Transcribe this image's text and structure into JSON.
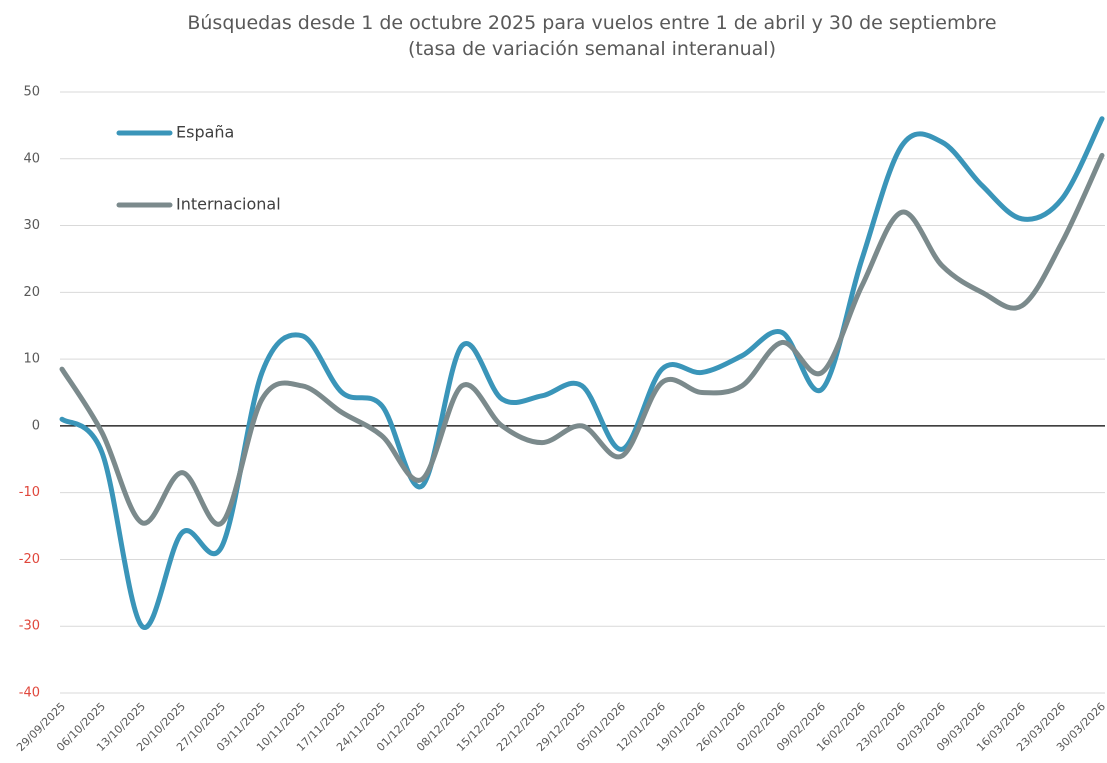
{
  "chart_data": {
    "type": "line",
    "title": "Búsquedas desde 1 de octubre 2025 para vuelos entre 1 de abril y 30 de septiembre",
    "subtitle": "(tasa de variación semanal interanual)",
    "categories": [
      "29/09/2025",
      "06/10/2025",
      "13/10/2025",
      "20/10/2025",
      "27/10/2025",
      "03/11/2025",
      "10/11/2025",
      "17/11/2025",
      "24/11/2025",
      "01/12/2025",
      "08/12/2025",
      "15/12/2025",
      "22/12/2025",
      "29/12/2025",
      "05/01/2026",
      "12/01/2026",
      "19/01/2026",
      "26/01/2026",
      "02/02/2026",
      "09/02/2026",
      "16/02/2026",
      "23/02/2026",
      "02/03/2026",
      "09/03/2026",
      "16/03/2026",
      "23/03/2026",
      "30/03/2026"
    ],
    "series": [
      {
        "name": "España",
        "color": "#3a95b9",
        "values": [
          1,
          -4,
          -30,
          -16,
          -18,
          8,
          13.5,
          5,
          3,
          -9,
          12,
          4,
          4.5,
          6,
          -3.5,
          8.5,
          8,
          10.5,
          14,
          5.5,
          25,
          42,
          42.5,
          36,
          31,
          34,
          46
        ]
      },
      {
        "name": "Internacional",
        "color": "#7b8a8c",
        "values": [
          8.5,
          -1,
          -14.5,
          -7,
          -14.5,
          4,
          6,
          2,
          -1.5,
          -8,
          6,
          0,
          -2.5,
          0,
          -4.5,
          6.5,
          5,
          6,
          12.5,
          8,
          21,
          32,
          24,
          20,
          18,
          27.5,
          40.5
        ]
      }
    ],
    "ylim": [
      -40,
      50
    ],
    "yticks": [
      -40,
      -30,
      -20,
      -10,
      0,
      10,
      20,
      30,
      40,
      50
    ],
    "grid": true,
    "legend": "top-left",
    "negative_tick_color": "#e0473c"
  }
}
